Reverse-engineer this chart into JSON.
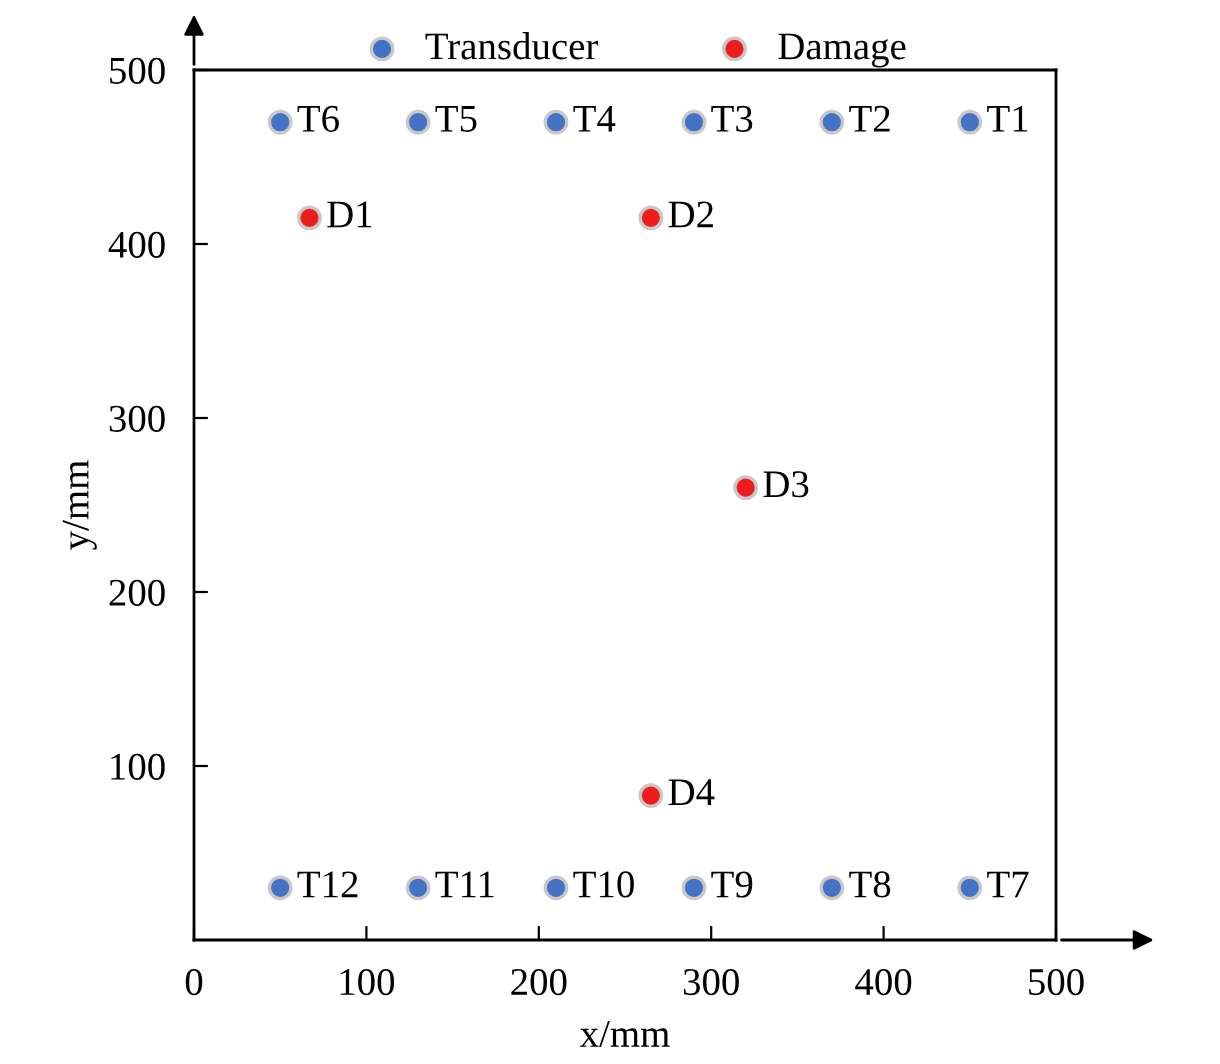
{
  "chart_data": {
    "type": "scatter",
    "xlabel": "x/mm",
    "ylabel": "y/mm",
    "xlim": [
      0,
      500
    ],
    "ylim": [
      0,
      500
    ],
    "xticks": [
      0,
      100,
      200,
      300,
      400,
      500
    ],
    "yticks": [
      100,
      200,
      300,
      400,
      500
    ],
    "grid": false,
    "legend": "top",
    "marker": "circle",
    "series": [
      {
        "name": "Transducer",
        "color": "#4472c4",
        "x": [
          450,
          370,
          290,
          210,
          130,
          50,
          450,
          370,
          290,
          210,
          130,
          50
        ],
        "values": [
          470,
          470,
          470,
          470,
          470,
          470,
          30,
          30,
          30,
          30,
          30,
          30
        ],
        "value_labels": [
          "T1",
          "T2",
          "T3",
          "T4",
          "T5",
          "T6",
          "T7",
          "T8",
          "T9",
          "T10",
          "T11",
          "T12"
        ]
      },
      {
        "name": "Damage",
        "color": "#ee1c1c",
        "x": [
          67,
          265,
          320,
          265
        ],
        "values": [
          415,
          415,
          260,
          83
        ],
        "value_labels": [
          "D1",
          "D2",
          "D3",
          "D4"
        ]
      }
    ]
  }
}
